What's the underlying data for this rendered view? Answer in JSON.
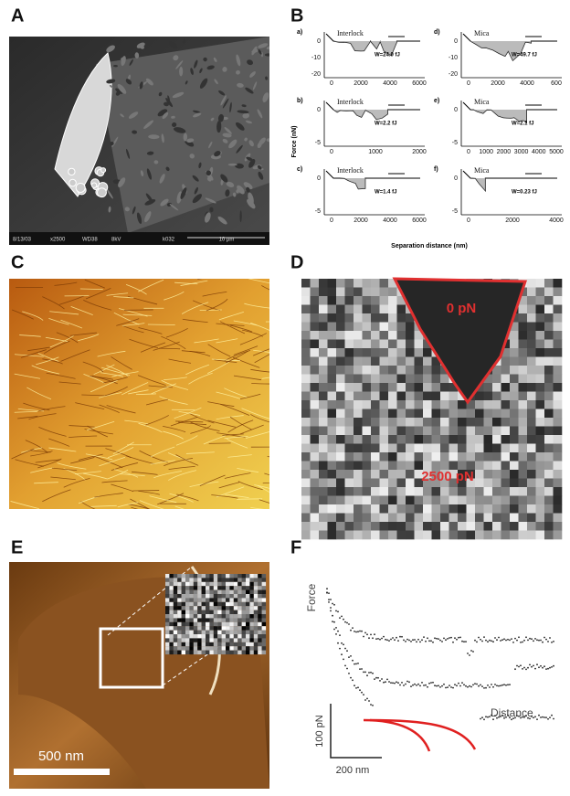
{
  "panels": {
    "A": {
      "label": "A",
      "info": [
        "8/13/03",
        "x2500",
        "WD38",
        "8kV",
        "k032"
      ],
      "scale_bar": "10 µm"
    },
    "B": {
      "label": "B",
      "y_axis_label": "Force (nN)",
      "x_axis_label": "Separation distance (nm)",
      "plots": [
        {
          "label": "a)",
          "surface": "Interlock",
          "work": "W=24.0 fJ",
          "yticks": [
            0,
            -10,
            -20
          ],
          "xticks": [
            0,
            2000,
            4000,
            6000
          ]
        },
        {
          "label": "b)",
          "surface": "Interlock",
          "work": "W=2.2 fJ",
          "yticks": [
            0,
            -5
          ],
          "xticks": [
            0,
            1000,
            2000
          ]
        },
        {
          "label": "c)",
          "surface": "Interlock",
          "work": "W=1.4 fJ",
          "yticks": [
            0,
            -5
          ],
          "xticks": [
            0,
            2000,
            4000,
            6000
          ]
        },
        {
          "label": "d)",
          "surface": "Mica",
          "work": "W=49.7 fJ",
          "yticks": [
            0,
            -10,
            -20
          ],
          "xticks": [
            "0",
            "2000",
            "4000",
            "600"
          ]
        },
        {
          "label": "e)",
          "surface": "Mica",
          "work": "W=2.1 fJ",
          "yticks": [
            0,
            -5
          ],
          "xticks": [
            0,
            1000,
            2000,
            3000,
            4000,
            5000
          ]
        },
        {
          "label": "f)",
          "surface": "Mica",
          "work": "W=0.23 fJ",
          "yticks": [
            0,
            -5
          ],
          "xticks": [
            0,
            2000,
            4000
          ]
        }
      ]
    },
    "C": {
      "label": "C"
    },
    "D": {
      "label": "D",
      "region_label": "0 pN",
      "background_label": "2500 pN"
    },
    "E": {
      "label": "E",
      "scale_bar": "500 nm"
    },
    "F": {
      "label": "F",
      "y_axis_label": "Force",
      "x_axis_label": "Distance",
      "force_scale": "100 pN",
      "distance_scale": "200 nm"
    }
  }
}
